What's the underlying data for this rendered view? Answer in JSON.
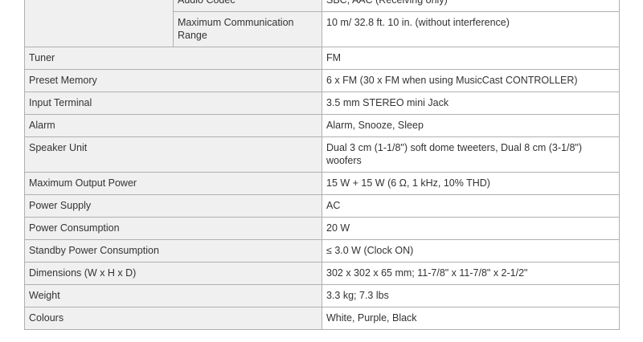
{
  "group_rows": [
    {
      "label": "Audio Codec",
      "value": "SBC, AAC  (Receiving only)"
    },
    {
      "label": "Maximum Communication Range",
      "value": "10 m/ 32.8 ft. 10 in. (without interference)"
    }
  ],
  "rows": [
    {
      "label": "Tuner",
      "value": "FM"
    },
    {
      "label": "Preset Memory",
      "value": "6 x FM (30 x FM when using MusicCast CONTROLLER)"
    },
    {
      "label": "Input Terminal",
      "value": "3.5 mm STEREO mini Jack"
    },
    {
      "label": "Alarm",
      "value": "Alarm, Snooze, Sleep"
    },
    {
      "label": "Speaker Unit",
      "value": "Dual 3 cm (1-1/8\") soft dome tweeters, Dual 8 cm (3-1/8\") woofers"
    },
    {
      "label": "Maximum Output Power",
      "value": "15 W + 15 W (6 Ω, 1 kHz, 10% THD)"
    },
    {
      "label": "Power Supply",
      "value": "AC"
    },
    {
      "label": "Power Consumption",
      "value": "20 W"
    },
    {
      "label": "Standby Power Consumption",
      "value": "≤ 3.0 W (Clock ON)"
    },
    {
      "label": "Dimensions (W x H x D)",
      "value": "302 x 302 x 65 mm; 11-7/8\" x 11-7/8\" x 2-1/2\""
    },
    {
      "label": "Weight",
      "value": "3.3 kg; 7.3 lbs"
    },
    {
      "label": "Colours",
      "value": "White, Purple, Black"
    }
  ]
}
